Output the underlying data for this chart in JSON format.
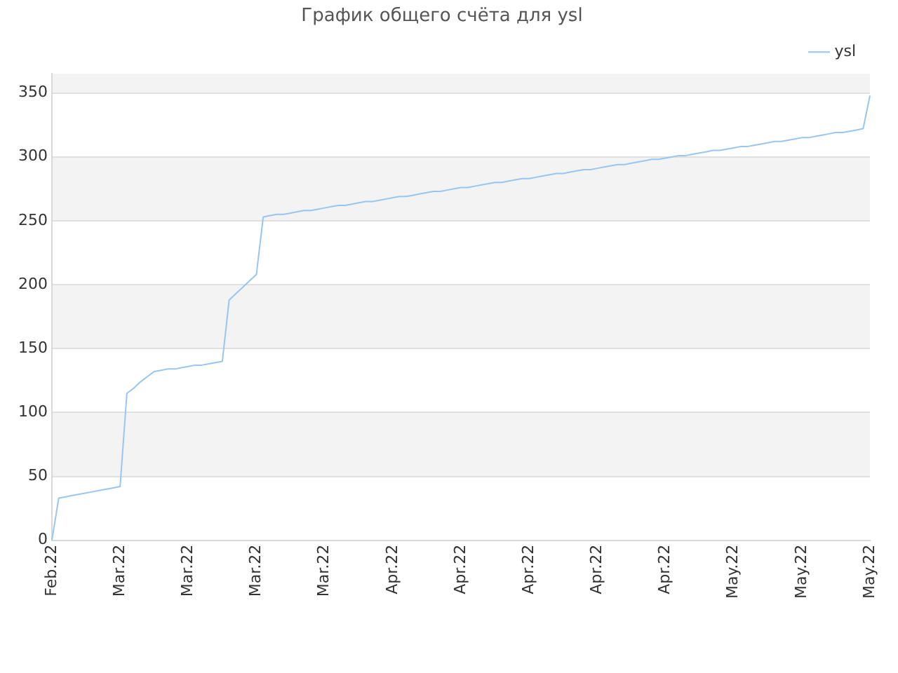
{
  "chart_data": {
    "type": "line",
    "title": "График общего счёта для ysl",
    "categories": [
      "Feb.22",
      null,
      null,
      null,
      null,
      null,
      null,
      null,
      null,
      null,
      "Mar.22",
      null,
      null,
      null,
      null,
      null,
      null,
      null,
      null,
      null,
      "Mar.22",
      null,
      null,
      null,
      null,
      null,
      null,
      null,
      null,
      null,
      "Mar.22",
      null,
      null,
      null,
      null,
      null,
      null,
      null,
      null,
      null,
      "Mar.22",
      null,
      null,
      null,
      null,
      null,
      null,
      null,
      null,
      null,
      "Apr.22",
      null,
      null,
      null,
      null,
      null,
      null,
      null,
      null,
      null,
      "Apr.22",
      null,
      null,
      null,
      null,
      null,
      null,
      null,
      null,
      null,
      "Apr.22",
      null,
      null,
      null,
      null,
      null,
      null,
      null,
      null,
      null,
      "Apr.22",
      null,
      null,
      null,
      null,
      null,
      null,
      null,
      null,
      null,
      "Apr.22",
      null,
      null,
      null,
      null,
      null,
      null,
      null,
      null,
      null,
      "May.22",
      null,
      null,
      null,
      null,
      null,
      null,
      null,
      null,
      null,
      "May.22",
      null,
      null,
      null,
      null,
      null,
      null,
      null,
      null,
      null,
      "May.22"
    ],
    "series": [
      {
        "name": "ysl",
        "color": "#99c5f3",
        "values": [
          0,
          33,
          34,
          35,
          36,
          37,
          38,
          39,
          40,
          41,
          42,
          115,
          119,
          124,
          128,
          132,
          133,
          134,
          134,
          135,
          136,
          137,
          137,
          138,
          139,
          140,
          188,
          193,
          198,
          203,
          208,
          253,
          254,
          255,
          255,
          256,
          257,
          258,
          258,
          259,
          260,
          261,
          262,
          262,
          263,
          264,
          265,
          265,
          266,
          267,
          268,
          269,
          269,
          270,
          271,
          272,
          273,
          273,
          274,
          275,
          276,
          276,
          277,
          278,
          279,
          280,
          280,
          281,
          282,
          283,
          283,
          284,
          285,
          286,
          287,
          287,
          288,
          289,
          290,
          290,
          291,
          292,
          293,
          294,
          294,
          295,
          296,
          297,
          298,
          298,
          299,
          300,
          301,
          301,
          302,
          303,
          304,
          305,
          305,
          306,
          307,
          308,
          308,
          309,
          310,
          311,
          312,
          312,
          313,
          314,
          315,
          315,
          316,
          317,
          318,
          319,
          319,
          320,
          321,
          322,
          348
        ]
      }
    ],
    "ylim": [
      0,
      365
    ],
    "yticks": [
      0,
      50,
      100,
      150,
      200,
      250,
      300,
      350
    ],
    "grid": "y",
    "legend": "top right",
    "marker": "none",
    "line_style": "solid"
  }
}
